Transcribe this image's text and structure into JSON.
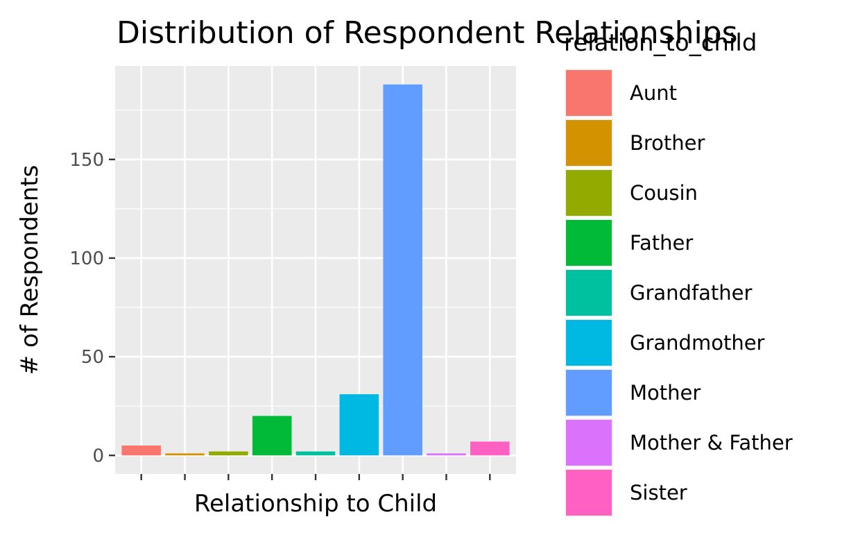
{
  "chart_data": {
    "type": "bar",
    "title": "Distribution of Respondent Relationships",
    "xlabel": "Relationship to Child",
    "ylabel": "# of Respondents",
    "categories": [
      "Aunt",
      "Brother",
      "Cousin",
      "Father",
      "Grandfather",
      "Grandmother",
      "Mother",
      "Mother & Father",
      "Sister"
    ],
    "values": [
      5,
      1,
      2,
      20,
      2,
      31,
      188,
      1,
      7
    ],
    "colors": [
      "#F8766D",
      "#D39200",
      "#93AA00",
      "#00BA38",
      "#00C19F",
      "#00B9E3",
      "#619CFF",
      "#DB72FB",
      "#FF61C3"
    ],
    "yticks": [
      0,
      50,
      100,
      150
    ],
    "ylim": [
      -9.4,
      197.4
    ],
    "x_tick_labels_shown": false,
    "grid": true,
    "legend": {
      "title": "relation_to_child",
      "position": "right"
    }
  }
}
